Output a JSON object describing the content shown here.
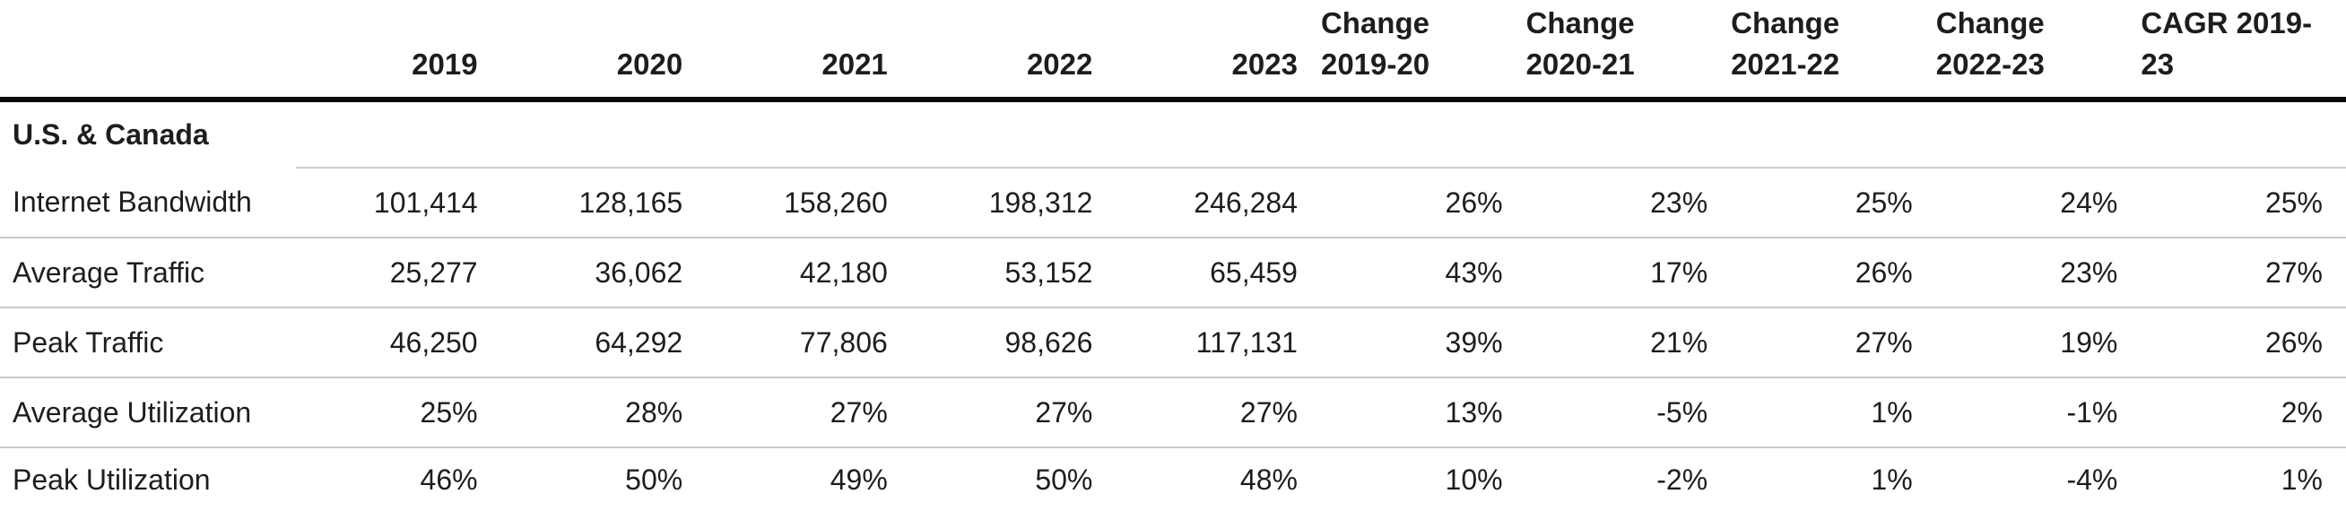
{
  "colors": {
    "text": "#1d1d1f",
    "rule_heavy": "#0a0a0a",
    "rule_light": "#cbcbcb",
    "background": "#ffffff"
  },
  "chart_data": {
    "type": "table",
    "title": "",
    "section": "U.S. & Canada",
    "columns": [
      "",
      "2019",
      "2020",
      "2021",
      "2022",
      "2023",
      "Change 2019-20",
      "Change 2020-21",
      "Change 2021-22",
      "Change 2022-23",
      "CAGR 2019-23"
    ],
    "rows": [
      {
        "label": "Internet Bandwidth",
        "values": [
          "101,414",
          "128,165",
          "158,260",
          "198,312",
          "246,284",
          "26%",
          "23%",
          "25%",
          "24%",
          "25%"
        ]
      },
      {
        "label": "Average Traffic",
        "values": [
          "25,277",
          "36,062",
          "42,180",
          "53,152",
          "65,459",
          "43%",
          "17%",
          "26%",
          "23%",
          "27%"
        ]
      },
      {
        "label": "Peak Traffic",
        "values": [
          "46,250",
          "64,292",
          "77,806",
          "98,626",
          "117,131",
          "39%",
          "21%",
          "27%",
          "19%",
          "26%"
        ]
      },
      {
        "label": "Average Utilization",
        "values": [
          "25%",
          "28%",
          "27%",
          "27%",
          "27%",
          "13%",
          "-5%",
          "1%",
          "-1%",
          "2%"
        ]
      },
      {
        "label": "Peak Utilization",
        "values": [
          "46%",
          "50%",
          "49%",
          "50%",
          "48%",
          "10%",
          "-2%",
          "1%",
          "-4%",
          "1%"
        ]
      }
    ]
  }
}
